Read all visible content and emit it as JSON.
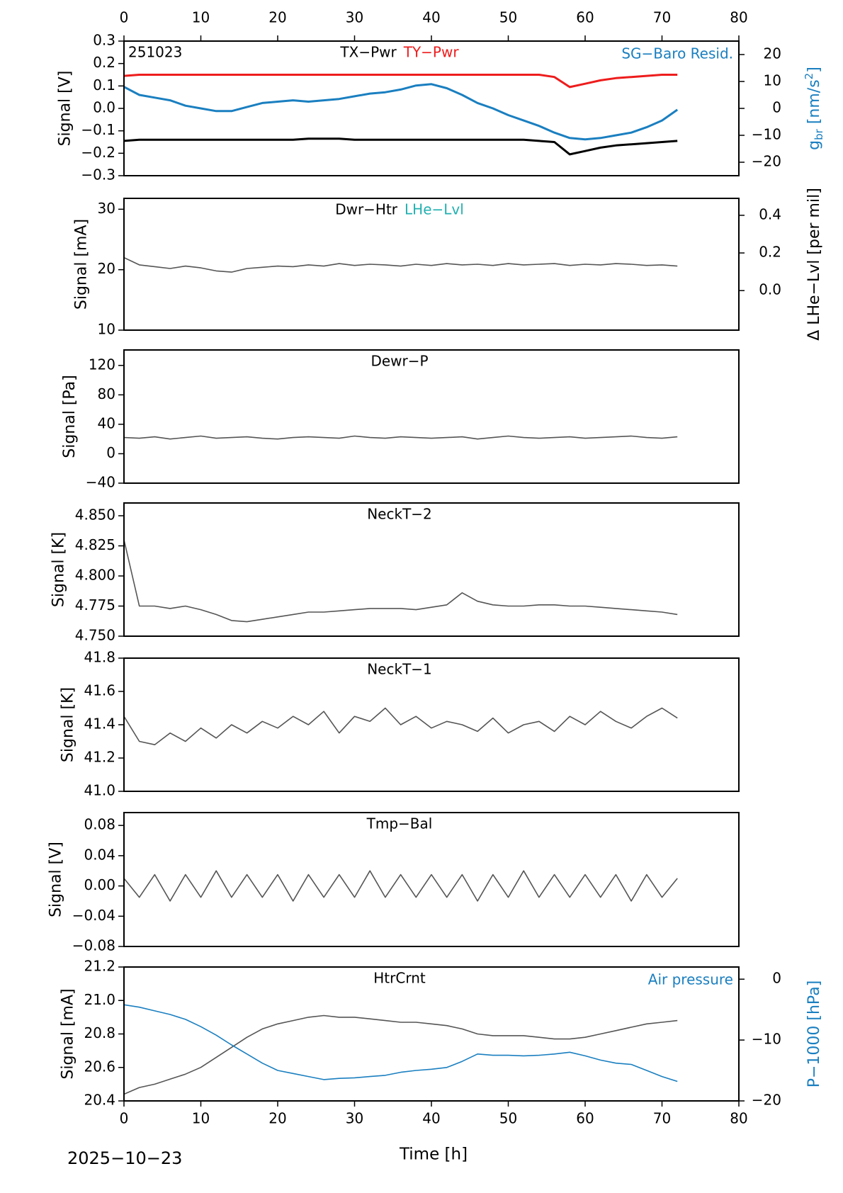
{
  "figure": {
    "x": [
      0,
      2,
      4,
      6,
      8,
      10,
      12,
      14,
      16,
      18,
      20,
      22,
      24,
      26,
      28,
      30,
      32,
      34,
      36,
      38,
      40,
      42,
      44,
      46,
      48,
      50,
      52,
      54,
      56,
      58,
      60,
      62,
      64,
      66,
      68,
      70,
      72
    ],
    "xlim": [
      0,
      80
    ],
    "xticks": [
      0,
      10,
      20,
      30,
      40,
      50,
      60,
      70,
      80
    ],
    "xlabel": "Time [h]",
    "date": "2025−10−23"
  },
  "chart_data": [
    {
      "type": "line",
      "label": "251023",
      "ylabel": "Signal [V]",
      "ylim": [
        -0.3,
        0.3
      ],
      "yticks": [
        {
          "value": -0.3,
          "label": "−0.3"
        },
        {
          "value": -0.2,
          "label": "−0.2"
        },
        {
          "value": -0.1,
          "label": "−0.1"
        },
        {
          "value": 0,
          "label": "0.0"
        },
        0.1,
        0.2,
        0.3
      ],
      "y2label": {
        "text": "g",
        "sub": "br",
        "unit": " [nm/s",
        "sup": "2",
        "end": "]"
      },
      "y2label_color": "#1a7fc0",
      "y2lim": [
        -25,
        25
      ],
      "y2ticks": [
        {
          "value": -20,
          "label": "−20"
        },
        {
          "value": -10,
          "label": "−10"
        },
        0,
        10,
        20
      ],
      "series": [
        {
          "name": "TX−Pwr",
          "color": "#000000",
          "values": [
            -0.145,
            -0.14,
            -0.14,
            -0.14,
            -0.14,
            -0.14,
            -0.14,
            -0.14,
            -0.14,
            -0.14,
            -0.14,
            -0.14,
            -0.135,
            -0.135,
            -0.135,
            -0.14,
            -0.14,
            -0.14,
            -0.14,
            -0.14,
            -0.14,
            -0.14,
            -0.14,
            -0.14,
            -0.14,
            -0.14,
            -0.14,
            -0.145,
            -0.15,
            -0.205,
            -0.19,
            -0.175,
            -0.165,
            -0.16,
            -0.155,
            -0.15,
            -0.145
          ]
        },
        {
          "name": "TY−Pwr",
          "color": "#ee1c1c",
          "values": [
            0.145,
            0.15,
            0.15,
            0.15,
            0.15,
            0.15,
            0.15,
            0.15,
            0.15,
            0.15,
            0.15,
            0.15,
            0.15,
            0.15,
            0.15,
            0.15,
            0.15,
            0.15,
            0.15,
            0.15,
            0.15,
            0.15,
            0.15,
            0.15,
            0.15,
            0.15,
            0.15,
            0.15,
            0.14,
            0.095,
            0.11,
            0.125,
            0.135,
            0.14,
            0.145,
            0.15,
            0.15
          ]
        },
        {
          "name": "SG−Baro Resid.",
          "color": "#1a7fc0",
          "axis": "y2",
          "values": [
            8,
            5,
            4,
            3,
            1,
            0,
            -1,
            -1,
            0.5,
            2,
            2.5,
            3,
            2.5,
            3,
            3.5,
            4.5,
            5.5,
            6,
            7,
            8.5,
            9,
            7.5,
            5,
            2,
            0,
            -2.5,
            -4.5,
            -6.5,
            -9,
            -11,
            -11.5,
            -11,
            -10,
            -9,
            -7,
            -4.5,
            -0.5
          ]
        }
      ]
    },
    {
      "type": "line",
      "ylabel": "Signal [mA]",
      "ylim": [
        10,
        31.8
      ],
      "yticks": [
        10,
        20,
        30
      ],
      "y2label": "Δ LHe−Lvl [per mil]",
      "y2label_color": "#000000",
      "y2lim": [
        -0.21,
        0.49
      ],
      "y2ticks": [
        {
          "value": 0,
          "label": "0.0"
        },
        0.2,
        0.4
      ],
      "series": [
        {
          "name": "Dwr−Htr",
          "color": "#555555",
          "label_color": "#000000",
          "values": [
            22,
            20.8,
            20.5,
            20.2,
            20.6,
            20.3,
            19.8,
            19.6,
            20.2,
            20.4,
            20.6,
            20.5,
            20.8,
            20.6,
            21,
            20.7,
            20.9,
            20.8,
            20.6,
            20.9,
            20.7,
            21,
            20.8,
            20.9,
            20.7,
            21,
            20.8,
            20.9,
            21,
            20.7,
            20.9,
            20.8,
            21,
            20.9,
            20.7,
            20.8,
            20.6
          ]
        },
        {
          "name": "LHe−Lvl",
          "color": "#22b0b0",
          "axis": "y2",
          "legend": "center",
          "values": [
            null,
            null,
            null,
            null,
            null,
            null,
            null,
            null,
            null,
            null,
            null,
            null,
            null,
            null,
            null,
            null,
            null,
            null,
            null,
            null,
            null,
            null,
            null,
            null,
            null,
            null,
            null,
            null,
            null,
            null,
            null,
            null,
            null,
            null,
            null,
            null,
            null
          ]
        }
      ]
    },
    {
      "type": "line",
      "ylabel": "Signal [Pa]",
      "ylim": [
        -40,
        141
      ],
      "yticks": [
        {
          "value": -40,
          "label": "−40"
        },
        0,
        40,
        80,
        120
      ],
      "series": [
        {
          "name": "Dewr−P",
          "color": "#555555",
          "label_color": "#000000",
          "values": [
            22,
            21,
            23,
            20,
            22,
            24,
            21,
            22,
            23,
            21,
            20,
            22,
            23,
            22,
            21,
            24,
            22,
            21,
            23,
            22,
            21,
            22,
            23,
            20,
            22,
            24,
            22,
            21,
            22,
            23,
            21,
            22,
            23,
            24,
            22,
            21,
            23
          ]
        }
      ]
    },
    {
      "type": "line",
      "ylabel": "Signal [K]",
      "ylim": [
        4.75,
        4.8606
      ],
      "yticks": [
        {
          "value": 4.75,
          "label": "4.750"
        },
        {
          "value": 4.775,
          "label": "4.775"
        },
        {
          "value": 4.8,
          "label": "4.800"
        },
        {
          "value": 4.825,
          "label": "4.825"
        },
        {
          "value": 4.85,
          "label": "4.850"
        }
      ],
      "series": [
        {
          "name": "NeckT−2",
          "color": "#555555",
          "label_color": "#000000",
          "values": [
            4.83,
            4.775,
            4.775,
            4.773,
            4.775,
            4.772,
            4.768,
            4.763,
            4.762,
            4.764,
            4.766,
            4.768,
            4.77,
            4.77,
            4.771,
            4.772,
            4.773,
            4.773,
            4.773,
            4.772,
            4.774,
            4.776,
            4.786,
            4.779,
            4.776,
            4.775,
            4.775,
            4.776,
            4.776,
            4.775,
            4.775,
            4.774,
            4.773,
            4.772,
            4.771,
            4.77,
            4.768
          ]
        }
      ]
    },
    {
      "type": "line",
      "ylabel": "Signal [K]",
      "ylim": [
        41.0,
        41.8
      ],
      "yticks": [
        {
          "value": 41,
          "label": "41.0"
        },
        41.2,
        41.4,
        41.6,
        41.8
      ],
      "series": [
        {
          "name": "NeckT−1",
          "color": "#555555",
          "label_color": "#000000",
          "values": [
            41.45,
            41.3,
            41.28,
            41.35,
            41.3,
            41.38,
            41.32,
            41.4,
            41.35,
            41.42,
            41.38,
            41.45,
            41.4,
            41.48,
            41.35,
            41.45,
            41.42,
            41.5,
            41.4,
            41.45,
            41.38,
            41.42,
            41.4,
            41.36,
            41.44,
            41.35,
            41.4,
            41.42,
            41.36,
            41.45,
            41.4,
            41.48,
            41.42,
            41.38,
            41.45,
            41.5,
            41.44
          ]
        }
      ]
    },
    {
      "type": "line",
      "ylabel": "Signal [V]",
      "ylim": [
        -0.08,
        0.097
      ],
      "yticks": [
        {
          "value": -0.08,
          "label": "−0.08"
        },
        {
          "value": -0.04,
          "label": "−0.04"
        },
        {
          "value": 0,
          "label": "0.00"
        },
        0.04,
        0.08
      ],
      "series": [
        {
          "name": "Tmp−Bal",
          "color": "#555555",
          "label_color": "#000000",
          "values": [
            0.01,
            -0.015,
            0.015,
            -0.02,
            0.015,
            -0.015,
            0.02,
            -0.015,
            0.015,
            -0.015,
            0.015,
            -0.02,
            0.015,
            -0.015,
            0.015,
            -0.015,
            0.02,
            -0.015,
            0.015,
            -0.015,
            0.015,
            -0.015,
            0.015,
            -0.02,
            0.015,
            -0.015,
            0.02,
            -0.015,
            0.015,
            -0.015,
            0.015,
            -0.015,
            0.015,
            -0.02,
            0.015,
            -0.015,
            0.01
          ]
        }
      ]
    },
    {
      "type": "line",
      "ylabel": "Signal [mA]",
      "ylim": [
        20.4,
        21.2
      ],
      "yticks": [
        20.4,
        20.6,
        20.8,
        {
          "value": 21,
          "label": "21.0"
        },
        21.2
      ],
      "y2label": "P−1000 [hPa]",
      "y2label_color": "#1a7fc0",
      "y2lim": [
        -20,
        2
      ],
      "y2ticks": [
        {
          "value": -20,
          "label": "−20"
        },
        {
          "value": -10,
          "label": "−10"
        },
        0
      ],
      "series": [
        {
          "name": "HtrCrnt",
          "color": "#555555",
          "label_color": "#000000",
          "values": [
            20.44,
            20.48,
            20.5,
            20.53,
            20.56,
            20.6,
            20.66,
            20.72,
            20.78,
            20.83,
            20.86,
            20.88,
            20.9,
            20.91,
            20.9,
            20.9,
            20.89,
            20.88,
            20.87,
            20.87,
            20.86,
            20.85,
            20.83,
            20.8,
            20.79,
            20.79,
            20.79,
            20.78,
            20.77,
            20.77,
            20.78,
            20.8,
            20.82,
            20.84,
            20.86,
            20.87,
            20.88
          ]
        },
        {
          "name": "Air pressure",
          "color": "#1a7fc0",
          "axis": "y2",
          "values": [
            -4.2,
            -4.6,
            -5.2,
            -5.8,
            -6.6,
            -7.8,
            -9.2,
            -10.8,
            -12.3,
            -13.8,
            -15,
            -15.5,
            -16,
            -16.5,
            -16.3,
            -16.2,
            -16,
            -15.8,
            -15.3,
            -15,
            -14.8,
            -14.5,
            -13.5,
            -12.3,
            -12.5,
            -12.5,
            -12.6,
            -12.5,
            -12.3,
            -12,
            -12.6,
            -13.3,
            -13.8,
            -14,
            -15,
            -16,
            -16.8
          ]
        }
      ]
    }
  ]
}
